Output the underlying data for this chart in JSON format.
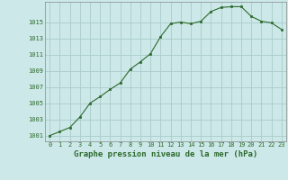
{
  "x": [
    0,
    1,
    2,
    3,
    4,
    5,
    6,
    7,
    8,
    9,
    10,
    11,
    12,
    13,
    14,
    15,
    16,
    17,
    18,
    19,
    20,
    21,
    22,
    23
  ],
  "y": [
    1001.0,
    1001.5,
    1002.0,
    1003.3,
    1005.0,
    1005.8,
    1006.7,
    1007.5,
    1009.2,
    1010.1,
    1011.1,
    1013.2,
    1014.8,
    1015.0,
    1014.8,
    1015.1,
    1016.3,
    1016.8,
    1016.9,
    1016.9,
    1015.7,
    1015.1,
    1014.9,
    1014.1
  ],
  "line_color": "#2d6a2d",
  "marker_color": "#2d6a2d",
  "bg_color": "#cce8e8",
  "grid_color": "#aacccc",
  "xlabel": "Graphe pression niveau de la mer (hPa)",
  "yticks": [
    1001,
    1003,
    1005,
    1007,
    1009,
    1011,
    1013,
    1015
  ],
  "xticks": [
    0,
    1,
    2,
    3,
    4,
    5,
    6,
    7,
    8,
    9,
    10,
    11,
    12,
    13,
    14,
    15,
    16,
    17,
    18,
    19,
    20,
    21,
    22,
    23
  ],
  "ylim": [
    1000.3,
    1017.5
  ],
  "xlim": [
    -0.5,
    23.5
  ],
  "tick_fontsize": 5.0,
  "xlabel_fontsize": 6.5
}
